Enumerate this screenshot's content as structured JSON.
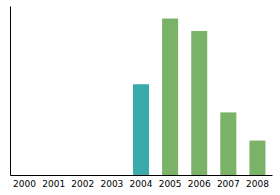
{
  "chart_data": {
    "type": "bar",
    "categories": [
      "2000",
      "2001",
      "2002",
      "2003",
      "2004",
      "2005",
      "2006",
      "2007",
      "2008"
    ],
    "values": [
      0,
      0,
      0,
      0,
      58,
      100,
      92,
      40,
      22
    ],
    "colors": [
      "#3aabaa",
      "#3aabaa",
      "#3aabaa",
      "#3aabaa",
      "#3aabaa",
      "#7ab368",
      "#7ab368",
      "#7ab368",
      "#7ab368"
    ],
    "ylim": [
      0,
      108
    ],
    "yticks": [],
    "grid": false,
    "tick_labels": "x"
  }
}
